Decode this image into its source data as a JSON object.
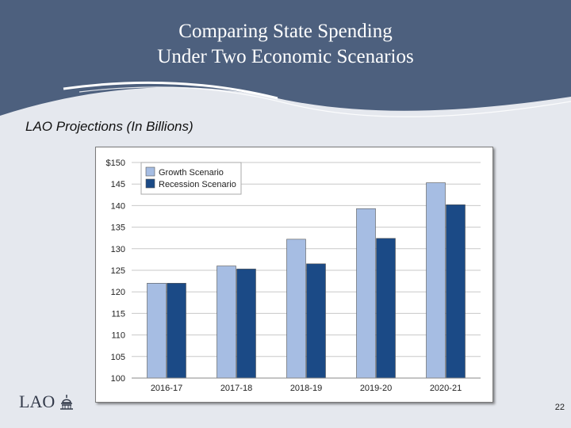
{
  "slide": {
    "title_line1": "Comparing State Spending",
    "title_line2": "Under Two Economic Scenarios",
    "subtitle": "LAO Projections (In Billions)",
    "logo_text": "LAO",
    "page_number": "22"
  },
  "colors": {
    "header": "#4d607e",
    "growth": "#a6bde3",
    "recession": "#1b4a86"
  },
  "chart_data": {
    "type": "bar",
    "title": "",
    "xlabel": "",
    "ylabel": "",
    "categories": [
      "2016-17",
      "2017-18",
      "2018-19",
      "2019-20",
      "2020-21"
    ],
    "series": [
      {
        "name": "Growth Scenario",
        "values": [
          122,
          126,
          132.2,
          139.3,
          145.3
        ]
      },
      {
        "name": "Recession Scenario",
        "values": [
          122,
          125.3,
          126.5,
          132.4,
          140.2
        ]
      }
    ],
    "ylim": [
      100,
      150
    ],
    "yticks": [
      100,
      105,
      110,
      115,
      120,
      125,
      130,
      135,
      140,
      145,
      150
    ],
    "ytick_labels": [
      "100",
      "105",
      "110",
      "115",
      "120",
      "125",
      "130",
      "135",
      "140",
      "145",
      "$150"
    ],
    "grid": true,
    "legend": "top-left"
  }
}
